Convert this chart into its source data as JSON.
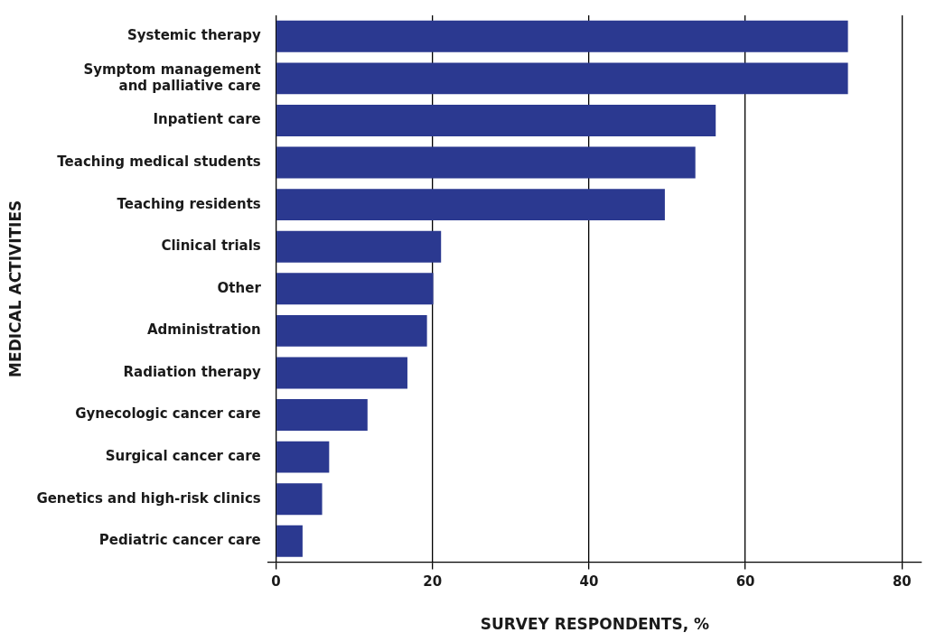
{
  "chart_data": {
    "type": "bar",
    "orientation": "horizontal",
    "xlabel": "SURVEY RESPONDENTS, %",
    "ylabel": "MEDICAL ACTIVITIES",
    "categories": [
      "Systemic therapy",
      "Symptom management\nand palliative care",
      "Inpatient care",
      "Teaching medical students",
      "Teaching residents",
      "Clinical trials",
      "Other",
      "Administration",
      "Radiation therapy",
      "Gynecologic cancer care",
      "Surgical cancer care",
      "Genetics and high-risk clinics",
      "Pediatric cancer care"
    ],
    "values": [
      73.1,
      73.1,
      56.2,
      53.6,
      49.7,
      21.1,
      20.1,
      19.3,
      16.8,
      11.7,
      6.8,
      5.9,
      3.4
    ],
    "color": "#2b3990",
    "xlim": [
      -1,
      82.5
    ],
    "xticks": [
      0,
      20,
      40,
      60,
      80
    ],
    "grid": "x",
    "legend": false
  }
}
